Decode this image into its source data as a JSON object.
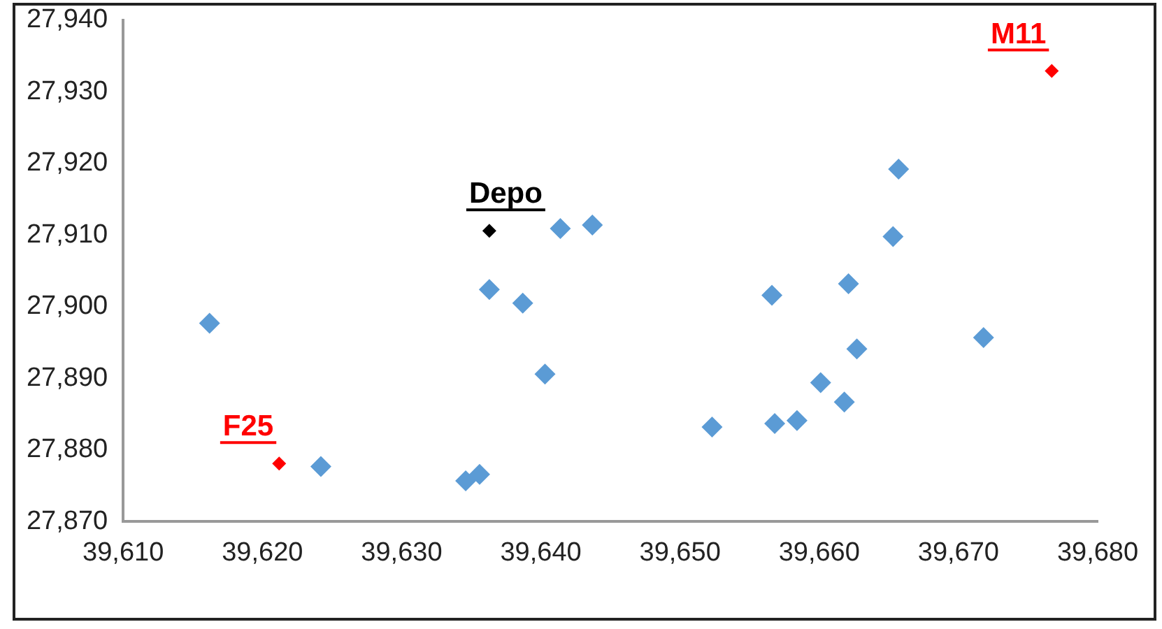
{
  "chart_data": {
    "type": "scatter",
    "marker": "diamond",
    "grid": false,
    "legend": false,
    "xlim": [
      39610,
      39680
    ],
    "xticks": [
      {
        "value": 39610,
        "label": "39,610"
      },
      {
        "value": 39620,
        "label": "39,620"
      },
      {
        "value": 39630,
        "label": "39,630"
      },
      {
        "value": 39640,
        "label": "39,640"
      },
      {
        "value": 39650,
        "label": "39,650"
      },
      {
        "value": 39660,
        "label": "39,660"
      },
      {
        "value": 39670,
        "label": "39,670"
      },
      {
        "value": 39680,
        "label": "39,680"
      }
    ],
    "ylim": [
      27870,
      27940
    ],
    "yticks": [
      {
        "value": 27870,
        "label": "27,870"
      },
      {
        "value": 27880,
        "label": "27,880"
      },
      {
        "value": 27890,
        "label": "27,890"
      },
      {
        "value": 27900,
        "label": "27,900"
      },
      {
        "value": 27910,
        "label": "27,910"
      },
      {
        "value": 27920,
        "label": "27,920"
      },
      {
        "value": 27930,
        "label": "27,930"
      },
      {
        "value": 27940,
        "label": "27,940"
      }
    ],
    "series": [
      {
        "color": "#5b9bd5",
        "x": [
          39616.2,
          39624.2,
          39634.6,
          39635.6,
          39636.3,
          39638.7,
          39640.3,
          39641.4,
          39643.7,
          39652.3,
          39656.6,
          39656.8,
          39658.4,
          39660.1,
          39661.8,
          39662.1,
          39662.7,
          39665.3,
          39665.7,
          39671.8
        ],
        "values": [
          27897.7,
          27877.7,
          27875.7,
          27876.6,
          27902.4,
          27900.5,
          27890.6,
          27910.9,
          27911.4,
          27883.2,
          27901.6,
          27883.7,
          27884.1,
          27889.4,
          27886.7,
          27903.2,
          27894.1,
          27909.8,
          27919.2,
          27895.7
        ]
      },
      {
        "name": "Depo",
        "color": "#000000",
        "x": [
          39636.3
        ],
        "values": [
          27910.6
        ]
      },
      {
        "name": "F25",
        "color": "#ff0000",
        "x": [
          39621.2
        ],
        "values": [
          27878.1
        ]
      },
      {
        "name": "M11",
        "color": "#ff0000",
        "x": [
          39676.7
        ],
        "values": [
          27932.9
        ]
      }
    ]
  }
}
